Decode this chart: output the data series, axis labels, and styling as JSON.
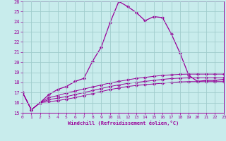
{
  "xlabel": "Windchill (Refroidissement éolien,°C)",
  "xlim": [
    0,
    23
  ],
  "ylim": [
    15,
    26
  ],
  "yticks": [
    15,
    16,
    17,
    18,
    19,
    20,
    21,
    22,
    23,
    24,
    25,
    26
  ],
  "xticks": [
    0,
    1,
    2,
    3,
    4,
    5,
    6,
    7,
    8,
    9,
    10,
    11,
    12,
    13,
    14,
    15,
    16,
    17,
    18,
    19,
    20,
    21,
    22,
    23
  ],
  "background_color": "#c8ecec",
  "grid_color": "#a0cccc",
  "line_color": "#990099",
  "label_color": "#990099",
  "tick_color": "#990099",
  "line1_y": [
    17.0,
    15.3,
    16.0,
    16.8,
    17.3,
    17.6,
    18.1,
    18.4,
    20.1,
    21.5,
    23.9,
    26.0,
    25.5,
    24.9,
    24.1,
    24.5,
    24.4,
    22.8,
    20.9,
    18.7,
    18.1,
    18.2,
    18.2,
    18.3
  ],
  "line2_y": [
    17.0,
    15.3,
    16.0,
    16.5,
    16.7,
    16.95,
    17.15,
    17.35,
    17.55,
    17.75,
    17.95,
    18.1,
    18.25,
    18.4,
    18.5,
    18.6,
    18.7,
    18.75,
    18.8,
    18.82,
    18.82,
    18.82,
    18.82,
    18.82
  ],
  "line3_y": [
    17.0,
    15.3,
    16.0,
    16.3,
    16.45,
    16.6,
    16.8,
    17.0,
    17.2,
    17.4,
    17.6,
    17.75,
    17.9,
    18.0,
    18.1,
    18.2,
    18.3,
    18.38,
    18.42,
    18.45,
    18.45,
    18.45,
    18.45,
    18.45
  ],
  "line4_y": [
    17.0,
    15.3,
    16.0,
    16.1,
    16.2,
    16.35,
    16.5,
    16.7,
    16.9,
    17.1,
    17.3,
    17.45,
    17.6,
    17.7,
    17.78,
    17.85,
    17.92,
    18.0,
    18.05,
    18.08,
    18.08,
    18.08,
    18.08,
    18.08
  ]
}
